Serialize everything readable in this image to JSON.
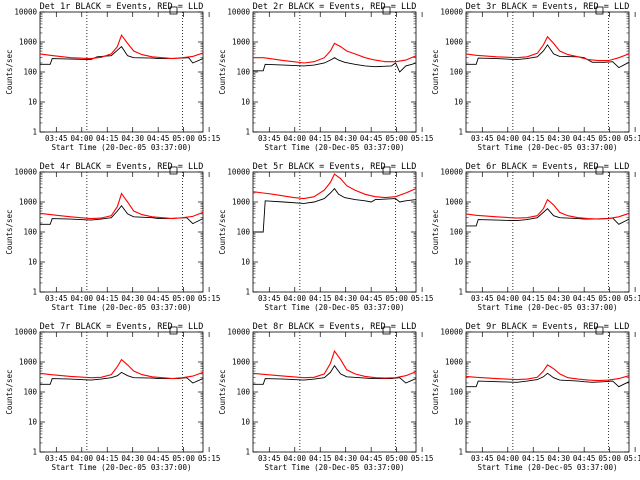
{
  "x_tick_labels": [
    "03:45",
    "04:00",
    "04:15",
    "04:30",
    "04:45",
    "05:00",
    "05:15"
  ],
  "y_tick_labels": [
    "1",
    "10",
    "100",
    "1000",
    "10000"
  ],
  "ylabel": "Counts/sec",
  "xlabel": "Start Time (20-Dec-05 03:37:00)",
  "colors": {
    "events": "#000000",
    "lld": "#ff0000"
  },
  "chart_data": [
    {
      "type": "line",
      "title": "Det 1r BLACK = Events, RED = LLD",
      "ylim": [
        1,
        10000
      ],
      "yscale": "log",
      "series": [
        {
          "color": "#000000",
          "x": [
            0,
            5,
            6,
            15,
            25,
            28,
            35,
            40,
            43,
            46,
            55,
            58,
            62,
            70,
            73,
            75,
            80
          ],
          "y": [
            180,
            180,
            280,
            270,
            260,
            320,
            350,
            700,
            350,
            300,
            290,
            280,
            280,
            290,
            300,
            200,
            280
          ]
        },
        {
          "color": "#ff0000",
          "x": [
            0,
            5,
            15,
            25,
            30,
            35,
            38,
            40,
            43,
            46,
            50,
            55,
            60,
            65,
            70,
            75,
            80
          ],
          "y": [
            400,
            360,
            300,
            280,
            310,
            400,
            700,
            1700,
            900,
            500,
            380,
            320,
            300,
            280,
            300,
            330,
            430
          ]
        }
      ]
    },
    {
      "type": "line",
      "title": "Det 2r BLACK = Events, RED = LLD",
      "ylim": [
        1,
        10000
      ],
      "yscale": "log",
      "series": [
        {
          "color": "#000000",
          "x": [
            0,
            5,
            6,
            15,
            25,
            30,
            35,
            38,
            40,
            42,
            45,
            50,
            55,
            60,
            68,
            70,
            72,
            75,
            78,
            80
          ],
          "y": [
            110,
            110,
            180,
            170,
            160,
            170,
            200,
            250,
            300,
            250,
            210,
            180,
            160,
            150,
            160,
            200,
            100,
            160,
            180,
            200
          ]
        },
        {
          "color": "#ff0000",
          "x": [
            0,
            5,
            10,
            15,
            20,
            25,
            30,
            35,
            38,
            40,
            43,
            46,
            50,
            55,
            60,
            65,
            70,
            75,
            80
          ],
          "y": [
            300,
            300,
            270,
            240,
            220,
            200,
            220,
            300,
            500,
            900,
            700,
            500,
            400,
            300,
            250,
            220,
            220,
            250,
            350
          ]
        }
      ]
    },
    {
      "type": "line",
      "title": "Det 3r BLACK = Events, RED = LLD",
      "ylim": [
        1,
        10000
      ],
      "yscale": "log",
      "series": [
        {
          "color": "#000000",
          "x": [
            0,
            5,
            6,
            15,
            25,
            30,
            35,
            38,
            40,
            43,
            46,
            55,
            58,
            62,
            68,
            72,
            75,
            80
          ],
          "y": [
            180,
            180,
            290,
            280,
            260,
            280,
            320,
            500,
            800,
            400,
            330,
            320,
            300,
            210,
            210,
            220,
            140,
            210
          ]
        },
        {
          "color": "#ff0000",
          "x": [
            0,
            5,
            15,
            25,
            30,
            35,
            38,
            40,
            43,
            46,
            50,
            55,
            60,
            65,
            70,
            75,
            80
          ],
          "y": [
            400,
            360,
            320,
            300,
            320,
            420,
            800,
            1500,
            900,
            500,
            380,
            320,
            260,
            240,
            240,
            300,
            400
          ]
        }
      ]
    },
    {
      "type": "line",
      "title": "Det 4r BLACK = Events, RED = LLD",
      "ylim": [
        1,
        10000
      ],
      "yscale": "log",
      "series": [
        {
          "color": "#000000",
          "x": [
            0,
            5,
            6,
            15,
            25,
            30,
            35,
            38,
            40,
            43,
            46,
            55,
            58,
            62,
            68,
            72,
            75,
            80
          ],
          "y": [
            180,
            180,
            280,
            270,
            250,
            270,
            300,
            500,
            750,
            400,
            320,
            300,
            280,
            280,
            290,
            300,
            190,
            280
          ]
        },
        {
          "color": "#ff0000",
          "x": [
            0,
            5,
            15,
            25,
            30,
            35,
            38,
            40,
            43,
            46,
            50,
            55,
            60,
            65,
            70,
            75,
            80
          ],
          "y": [
            420,
            380,
            320,
            280,
            290,
            350,
            700,
            1900,
            1000,
            500,
            380,
            320,
            300,
            280,
            300,
            330,
            450
          ]
        }
      ]
    },
    {
      "type": "line",
      "title": "Det 5r BLACK = Events, RED = LLD",
      "ylim": [
        1,
        10000
      ],
      "yscale": "log",
      "series": [
        {
          "color": "#000000",
          "x": [
            0,
            5,
            6,
            15,
            25,
            30,
            35,
            38,
            40,
            42,
            45,
            50,
            55,
            58,
            60,
            70,
            72,
            75,
            80
          ],
          "y": [
            100,
            100,
            1100,
            1000,
            900,
            1000,
            1300,
            2000,
            2800,
            1800,
            1400,
            1200,
            1100,
            1000,
            1200,
            1300,
            1000,
            1100,
            1200
          ]
        },
        {
          "color": "#ff0000",
          "x": [
            0,
            5,
            10,
            15,
            20,
            25,
            30,
            35,
            38,
            40,
            43,
            46,
            50,
            55,
            60,
            65,
            70,
            75,
            80
          ],
          "y": [
            2200,
            2000,
            1800,
            1600,
            1400,
            1300,
            1500,
            2500,
            4500,
            8500,
            6000,
            3500,
            2500,
            1800,
            1500,
            1400,
            1500,
            2000,
            2800
          ]
        }
      ]
    },
    {
      "type": "line",
      "title": "Det 6r BLACK = Events, RED = LLD",
      "ylim": [
        1,
        10000
      ],
      "yscale": "log",
      "series": [
        {
          "color": "#000000",
          "x": [
            0,
            5,
            6,
            15,
            25,
            30,
            35,
            38,
            40,
            43,
            46,
            55,
            58,
            62,
            68,
            72,
            75,
            80
          ],
          "y": [
            160,
            160,
            260,
            250,
            240,
            260,
            300,
            450,
            600,
            350,
            300,
            280,
            270,
            270,
            280,
            290,
            180,
            270
          ]
        },
        {
          "color": "#ff0000",
          "x": [
            0,
            5,
            15,
            25,
            30,
            35,
            38,
            40,
            43,
            46,
            50,
            55,
            60,
            65,
            70,
            75,
            80
          ],
          "y": [
            400,
            360,
            320,
            290,
            300,
            350,
            600,
            1200,
            800,
            450,
            350,
            300,
            280,
            270,
            280,
            320,
            420
          ]
        }
      ]
    },
    {
      "type": "line",
      "title": "Det 7r BLACK = Events, RED = LLD",
      "ylim": [
        1,
        10000
      ],
      "yscale": "log",
      "series": [
        {
          "color": "#000000",
          "x": [
            0,
            5,
            6,
            15,
            25,
            30,
            35,
            38,
            40,
            43,
            46,
            55,
            58,
            62,
            68,
            72,
            75,
            80
          ],
          "y": [
            180,
            180,
            280,
            270,
            250,
            270,
            300,
            350,
            450,
            350,
            300,
            290,
            280,
            280,
            280,
            300,
            200,
            280
          ]
        },
        {
          "color": "#ff0000",
          "x": [
            0,
            5,
            15,
            25,
            30,
            35,
            38,
            40,
            43,
            46,
            50,
            55,
            60,
            65,
            70,
            75,
            80
          ],
          "y": [
            420,
            380,
            330,
            300,
            310,
            380,
            700,
            1200,
            800,
            500,
            380,
            320,
            300,
            280,
            300,
            340,
            450
          ]
        }
      ]
    },
    {
      "type": "line",
      "title": "Det 8r BLACK = Events, RED = LLD",
      "ylim": [
        1,
        10000
      ],
      "yscale": "log",
      "series": [
        {
          "color": "#000000",
          "x": [
            0,
            5,
            6,
            15,
            25,
            30,
            35,
            38,
            40,
            43,
            46,
            55,
            58,
            62,
            68,
            72,
            75,
            80
          ],
          "y": [
            180,
            180,
            280,
            270,
            250,
            270,
            300,
            450,
            750,
            400,
            320,
            290,
            280,
            280,
            280,
            300,
            200,
            280
          ]
        },
        {
          "color": "#ff0000",
          "x": [
            0,
            5,
            15,
            25,
            30,
            35,
            38,
            40,
            43,
            46,
            50,
            55,
            60,
            65,
            70,
            75,
            80
          ],
          "y": [
            420,
            390,
            340,
            300,
            310,
            400,
            900,
            2300,
            1200,
            550,
            400,
            330,
            300,
            290,
            300,
            350,
            480
          ]
        }
      ]
    },
    {
      "type": "line",
      "title": "Det 9r BLACK = Events, RED = LLD",
      "ylim": [
        1,
        10000
      ],
      "yscale": "log",
      "series": [
        {
          "color": "#000000",
          "x": [
            0,
            5,
            6,
            15,
            25,
            30,
            35,
            38,
            40,
            43,
            46,
            55,
            58,
            62,
            68,
            72,
            75,
            80
          ],
          "y": [
            150,
            150,
            230,
            220,
            210,
            230,
            260,
            320,
            420,
            300,
            250,
            230,
            220,
            210,
            220,
            230,
            150,
            220
          ]
        },
        {
          "color": "#ff0000",
          "x": [
            0,
            5,
            15,
            25,
            30,
            35,
            38,
            40,
            43,
            46,
            50,
            55,
            60,
            65,
            70,
            75,
            80
          ],
          "y": [
            330,
            310,
            280,
            260,
            270,
            310,
            500,
            800,
            600,
            400,
            300,
            270,
            250,
            240,
            250,
            280,
            350
          ]
        }
      ]
    }
  ]
}
